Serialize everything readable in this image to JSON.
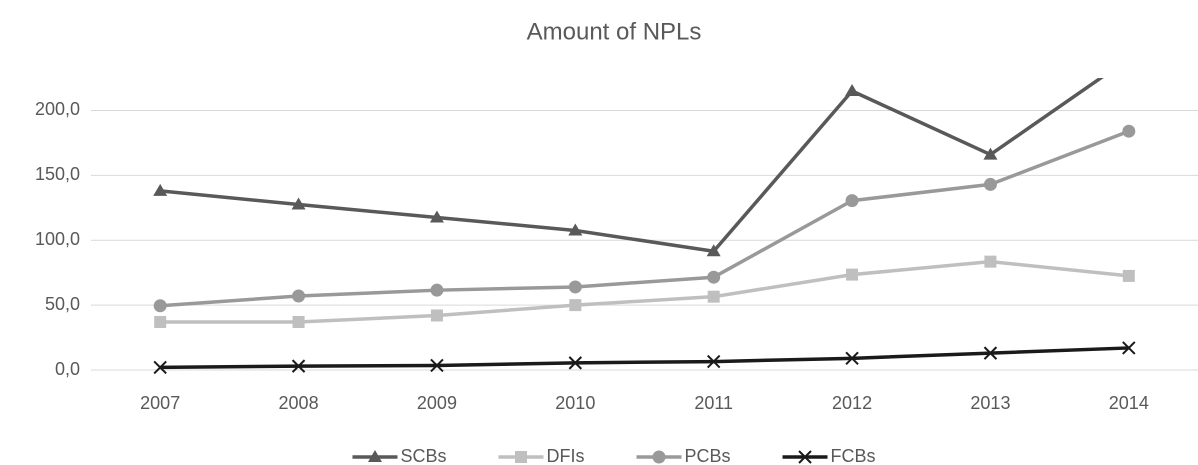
{
  "chart_data": {
    "type": "line",
    "title": "Amount of NPLs",
    "categories": [
      "2007",
      "2008",
      "2009",
      "2010",
      "2011",
      "2012",
      "2013",
      "2014"
    ],
    "series": [
      {
        "name": "SCBs",
        "color": "#595959",
        "marker": "triangle",
        "values": [
          138,
          127.5,
          117.5,
          107.5,
          91.5,
          215,
          166,
          240
        ]
      },
      {
        "name": "DFIs",
        "color": "#bfbfbf",
        "marker": "square",
        "values": [
          37,
          37,
          42,
          50,
          56.5,
          73.5,
          83.5,
          72.5
        ]
      },
      {
        "name": "PCBs",
        "color": "#999999",
        "marker": "circle",
        "values": [
          49.5,
          57,
          61.5,
          64,
          71.5,
          130.5,
          143,
          184
        ]
      },
      {
        "name": "FCBs",
        "color": "#1a1a1a",
        "marker": "x",
        "values": [
          2,
          3,
          3.5,
          5.5,
          6.5,
          9,
          13,
          17
        ]
      }
    ],
    "ylim": [
      0,
      225
    ],
    "yticks": [
      {
        "value": 0,
        "label": "0,0"
      },
      {
        "value": 50,
        "label": "50,0"
      },
      {
        "value": 100,
        "label": "100,0"
      },
      {
        "value": 150,
        "label": "150,0"
      },
      {
        "value": 200,
        "label": "200,0"
      }
    ],
    "grid": true,
    "legend": "bottom"
  }
}
